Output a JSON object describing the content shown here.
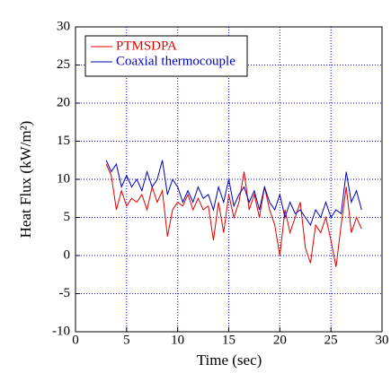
{
  "chart_data": {
    "type": "line",
    "xlabel": "Time (sec)",
    "ylabel": "Heat Flux (kW/m²)",
    "x": [
      3,
      3.5,
      4,
      4.5,
      5,
      5.5,
      6,
      6.5,
      7,
      7.5,
      8,
      8.5,
      9,
      9.5,
      10,
      10.5,
      11,
      11.5,
      12,
      12.5,
      13,
      13.5,
      14,
      14.5,
      15,
      15.5,
      16,
      16.5,
      17,
      17.5,
      18,
      18.5,
      19,
      19.5,
      20,
      20.5,
      21,
      21.5,
      22,
      22.5,
      23,
      23.5,
      24,
      24.5,
      25,
      25.5,
      26,
      26.5,
      27,
      27.5,
      28
    ],
    "series": [
      {
        "name": "PTMSDPA",
        "color": "#e00000",
        "values": [
          12,
          10.5,
          6,
          8.5,
          6.5,
          7.5,
          7,
          8,
          6,
          9,
          7,
          8.5,
          2.5,
          6,
          7,
          6.5,
          8,
          6,
          7.5,
          6,
          6.5,
          2,
          7,
          3,
          8,
          5,
          7,
          11,
          6,
          8,
          5,
          9,
          6,
          4,
          0,
          6,
          3,
          5,
          7,
          1,
          -1,
          4,
          3,
          5,
          2,
          -1.5,
          4,
          9,
          3,
          5,
          3.5
        ]
      },
      {
        "name": "Coaxial thermocouple",
        "color": "#0000c0",
        "values": [
          12.5,
          11,
          12,
          9,
          10.5,
          9,
          10,
          8.5,
          11,
          9,
          10,
          12.5,
          8,
          10,
          9,
          7,
          8.5,
          7,
          9,
          7.5,
          8,
          6,
          9,
          7,
          10,
          6.5,
          8,
          9,
          7,
          8.5,
          6,
          9,
          7,
          6,
          8,
          5,
          7,
          5.5,
          6,
          5,
          4,
          6,
          5,
          7,
          5,
          6,
          5.5,
          11,
          7,
          8.5,
          6
        ]
      }
    ],
    "xlim": [
      0,
      30
    ],
    "xticks": [
      0,
      5,
      10,
      15,
      20,
      25,
      30
    ],
    "ylim": [
      -10,
      30
    ],
    "yticks": [
      -10,
      -5,
      0,
      5,
      10,
      15,
      20,
      25,
      30
    ],
    "grid": true,
    "grid_color": "#0000ff",
    "legend": "upper left"
  }
}
